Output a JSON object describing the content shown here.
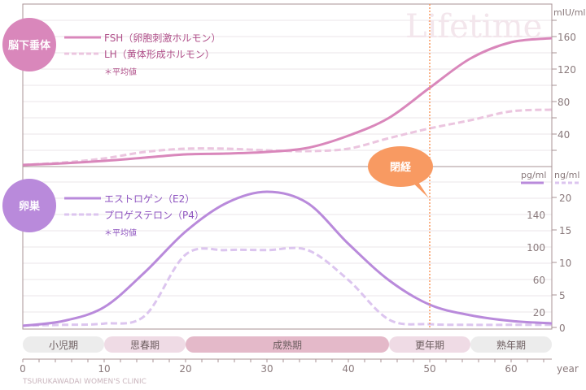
{
  "watermark": "Lifetime",
  "clinic": "TSURUKAWADAI WOMEN'S CLINIC",
  "menopause_label": "閉経",
  "menopause_age": 50,
  "colors": {
    "fsh": "#d987bb",
    "lh": "#ebc5df",
    "e2": "#b98adb",
    "p4": "#dcc5ef",
    "menopause": "#f89a62"
  },
  "phases": [
    {
      "label": "小児期",
      "from": 0,
      "to": 10,
      "color": "#ececec"
    },
    {
      "label": "思春期",
      "from": 10,
      "to": 20,
      "color": "#efdbe5"
    },
    {
      "label": "成熟期",
      "from": 20,
      "to": 45,
      "color": "#e4b9c9"
    },
    {
      "label": "更年期",
      "from": 45,
      "to": 55,
      "color": "#efdbe5"
    },
    {
      "label": "熟年期",
      "from": 55,
      "to": 65,
      "color": "#ececec"
    }
  ],
  "chart_data": [
    {
      "type": "line",
      "group_label": "脳下垂体",
      "note": "＊平均値",
      "xlabel": "year",
      "xlim": [
        0,
        65
      ],
      "xticks": [
        0,
        10,
        20,
        30,
        40,
        50,
        60
      ],
      "ylabel": "mIU/ml",
      "ylim": [
        0,
        180
      ],
      "yticks": [
        40,
        80,
        120,
        160
      ],
      "x": [
        0,
        5,
        10,
        15,
        20,
        25,
        30,
        35,
        40,
        45,
        50,
        55,
        60,
        65
      ],
      "series": [
        {
          "name": "FSH（卵胞刺激ホルモン）",
          "style": "solid",
          "values": [
            2,
            4,
            7,
            11,
            15,
            16,
            18,
            23,
            38,
            60,
            97,
            133,
            153,
            158
          ]
        },
        {
          "name": "LH（黄体形成ホルモン）",
          "style": "dashed",
          "values": [
            2,
            5,
            10,
            18,
            22,
            22,
            20,
            19,
            22,
            35,
            47,
            57,
            68,
            70
          ]
        }
      ]
    },
    {
      "type": "line",
      "group_label": "卵巣",
      "note": "＊平均値",
      "xlabel": "year",
      "xlim": [
        0,
        65
      ],
      "y_left_label": "pg/ml",
      "y_left_ticks": [
        20,
        60,
        100,
        140
      ],
      "y_left_lim": [
        0,
        180
      ],
      "y_right_label": "ng/ml",
      "y_right_ticks": [
        0,
        5,
        10,
        15,
        20
      ],
      "y_right_lim": [
        0,
        22.5
      ],
      "x": [
        0,
        5,
        10,
        15,
        20,
        25,
        30,
        35,
        40,
        45,
        50,
        55,
        60,
        65
      ],
      "series": [
        {
          "name": "エストロゲン（E2）",
          "style": "solid",
          "axis": "pg/ml",
          "values": [
            3,
            9,
            26,
            69,
            119,
            154,
            168,
            154,
            104,
            59,
            29,
            16,
            9,
            6
          ]
        },
        {
          "name": "プロゲステロン（P4）",
          "style": "dashed",
          "axis": "ng/ml",
          "values": [
            0.3,
            0.4,
            0.6,
            1.8,
            11.2,
            11.9,
            11.9,
            11.9,
            7.3,
            1.2,
            0.5,
            0.4,
            0.4,
            0.4
          ]
        }
      ]
    }
  ]
}
